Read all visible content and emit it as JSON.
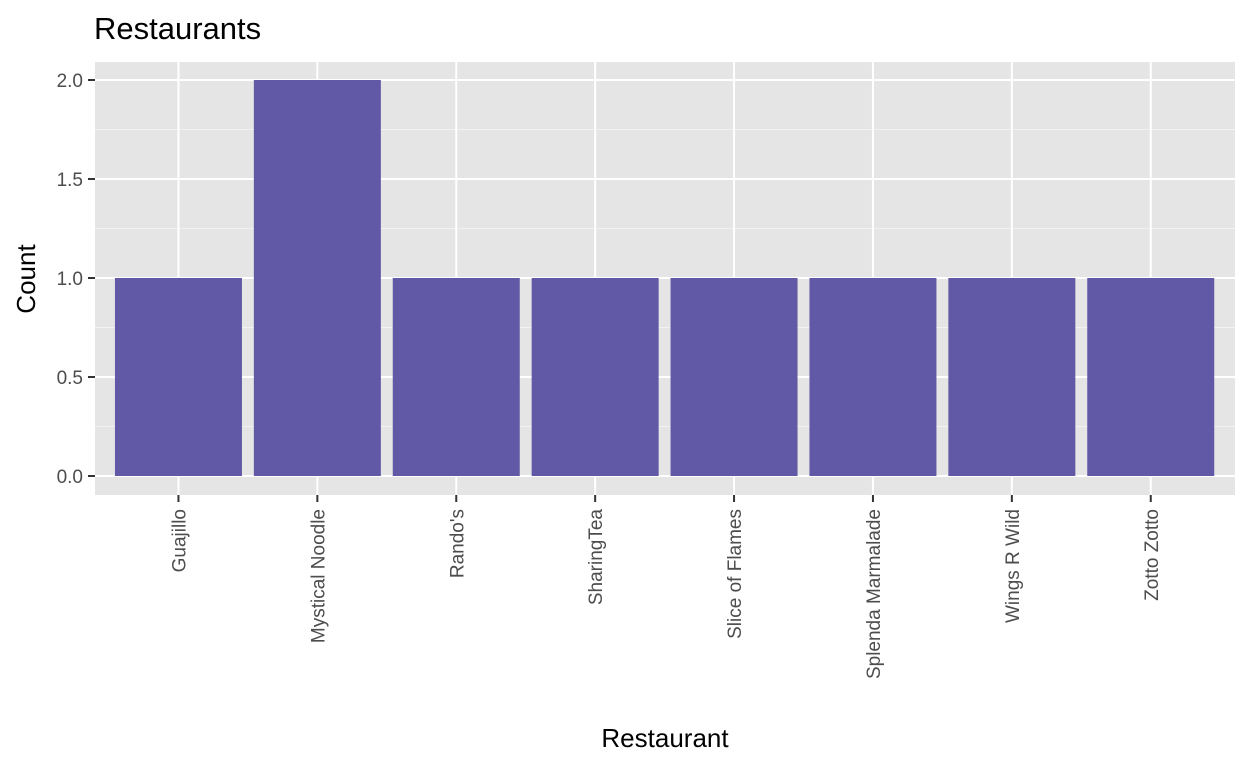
{
  "chart_data": {
    "type": "bar",
    "title": "Restaurants",
    "xlabel": "Restaurant",
    "ylabel": "Count",
    "categories": [
      "Guajillo",
      "Mystical Noodle",
      "Rando's",
      "SharingTea",
      "Slice of Flames",
      "Splenda Marmalade",
      "Wings R Wild",
      "Zotto Zotto"
    ],
    "values": [
      1,
      2,
      1,
      1,
      1,
      1,
      1,
      1
    ],
    "ylim": [
      0,
      2
    ],
    "yticks": [
      "0.0",
      "0.5",
      "1.0",
      "1.5",
      "2.0"
    ],
    "bar_color": "#6159a5",
    "panel_background": "#e5e5e5",
    "grid": true,
    "x_tick_label_rotation": "vertical"
  }
}
